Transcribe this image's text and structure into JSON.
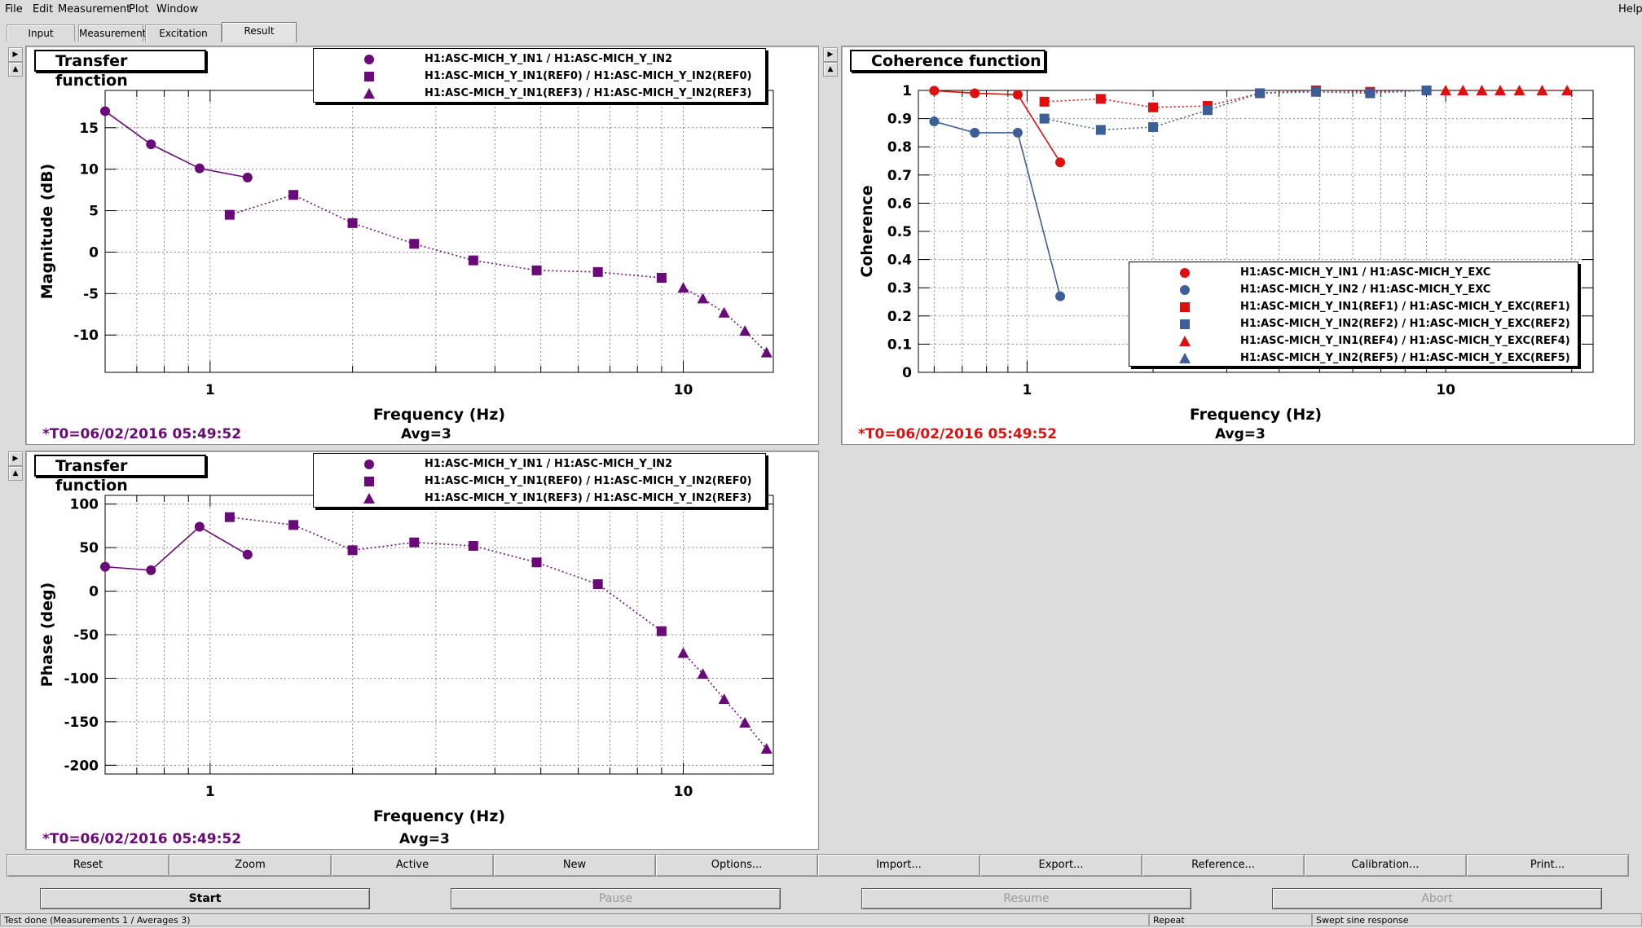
{
  "menu": [
    "File",
    "Edit",
    "Measurement",
    "Plot",
    "Window"
  ],
  "help": "Help",
  "tabs": [
    "Input",
    "Measurement",
    "Excitation",
    "Result"
  ],
  "active_tab": "Result",
  "panels": {
    "tf_mag": {
      "title": "Transfer function",
      "legend": [
        "H1:ASC-MICH_Y_IN1 / H1:ASC-MICH_Y_IN2",
        "H1:ASC-MICH_Y_IN1(REF0) / H1:ASC-MICH_Y_IN2(REF0)",
        "H1:ASC-MICH_Y_IN1(REF3) / H1:ASC-MICH_Y_IN2(REF3)"
      ],
      "timestamp": "*T0=06/02/2016 05:49:52",
      "avg": "Avg=3"
    },
    "coh": {
      "title": "Coherence function",
      "legend": [
        "H1:ASC-MICH_Y_IN1 / H1:ASC-MICH_Y_EXC",
        "H1:ASC-MICH_Y_IN2 / H1:ASC-MICH_Y_EXC",
        "H1:ASC-MICH_Y_IN1(REF1) / H1:ASC-MICH_Y_EXC(REF1)",
        "H1:ASC-MICH_Y_IN2(REF2) / H1:ASC-MICH_Y_EXC(REF2)",
        "H1:ASC-MICH_Y_IN1(REF4) / H1:ASC-MICH_Y_EXC(REF4)",
        "H1:ASC-MICH_Y_IN2(REF5) / H1:ASC-MICH_Y_EXC(REF5)"
      ],
      "timestamp": "*T0=06/02/2016 05:49:52",
      "avg": "Avg=3"
    },
    "tf_phase": {
      "title": "Transfer function",
      "legend": [
        "H1:ASC-MICH_Y_IN1 / H1:ASC-MICH_Y_IN2",
        "H1:ASC-MICH_Y_IN1(REF0) / H1:ASC-MICH_Y_IN2(REF0)",
        "H1:ASC-MICH_Y_IN1(REF3) / H1:ASC-MICH_Y_IN2(REF3)"
      ],
      "timestamp": "*T0=06/02/2016 05:49:52",
      "avg": "Avg=3"
    }
  },
  "colors": {
    "purple": "#6a0a78",
    "red": "#dd0f0f",
    "blue": "#3d5f97"
  },
  "chart_data": [
    {
      "type": "line",
      "xscale": "log",
      "xlim": [
        0.6,
        15.5
      ],
      "ylim": [
        -14.5,
        19.5
      ],
      "xlabel": "Frequency (Hz)",
      "ylabel": "Magnitude (dB)",
      "xticks": [
        1,
        10
      ],
      "yticks": [
        -10,
        -5,
        0,
        5,
        10,
        15
      ],
      "grid": true,
      "series": [
        {
          "name": "H1:ASC-MICH_Y_IN1 / H1:ASC-MICH_Y_IN2",
          "marker": "circle",
          "dash": "solid",
          "color": "#6a0a78",
          "x": [
            0.6,
            0.75,
            0.95,
            1.2
          ],
          "y": [
            17,
            13,
            10.1,
            9
          ]
        },
        {
          "name": "H1:ASC-MICH_Y_IN1(REF0) / H1:ASC-MICH_Y_IN2(REF0)",
          "marker": "square",
          "dash": "dotted",
          "color": "#6a0a78",
          "x": [
            1.1,
            1.5,
            2.0,
            2.7,
            3.6,
            4.9,
            6.6,
            9.0
          ],
          "y": [
            4.5,
            6.9,
            3.5,
            1.0,
            -1.0,
            -2.2,
            -2.4,
            -3.1
          ]
        },
        {
          "name": "H1:ASC-MICH_Y_IN1(REF3) / H1:ASC-MICH_Y_IN2(REF3)",
          "marker": "triangle",
          "dash": "dotted",
          "color": "#6a0a78",
          "x": [
            10.0,
            11.0,
            12.2,
            13.5,
            15.0
          ],
          "y": [
            -4.3,
            -5.6,
            -7.3,
            -9.5,
            -12.1
          ]
        }
      ]
    },
    {
      "type": "line",
      "xscale": "log",
      "xlim": [
        0.55,
        22.5
      ],
      "ylim": [
        0,
        1.0
      ],
      "xlabel": "Frequency (Hz)",
      "ylabel": "Coherence",
      "xticks": [
        1,
        10
      ],
      "yticks": [
        0,
        0.1,
        0.2,
        0.3,
        0.4,
        0.5,
        0.6,
        0.7,
        0.8,
        0.9,
        1
      ],
      "grid": true,
      "series": [
        {
          "name": "H1:ASC-MICH_Y_IN1 / H1:ASC-MICH_Y_EXC",
          "marker": "circle",
          "dash": "solid",
          "color": "#dd0f0f",
          "x": [
            0.6,
            0.75,
            0.95,
            1.2
          ],
          "y": [
            0.999,
            0.99,
            0.985,
            0.745
          ]
        },
        {
          "name": "H1:ASC-MICH_Y_IN2 / H1:ASC-MICH_Y_EXC",
          "marker": "circle",
          "dash": "solid",
          "color": "#3d5f97",
          "x": [
            0.6,
            0.75,
            0.95,
            1.2
          ],
          "y": [
            0.89,
            0.85,
            0.85,
            0.27
          ]
        },
        {
          "name": "H1:ASC-MICH_Y_IN1(REF1) / H1:ASC-MICH_Y_EXC(REF1)",
          "marker": "square",
          "dash": "dotted",
          "color": "#dd0f0f",
          "x": [
            1.1,
            1.5,
            2.0,
            2.7,
            3.6,
            4.9,
            6.6,
            9.0
          ],
          "y": [
            0.96,
            0.97,
            0.94,
            0.945,
            0.99,
            1.0,
            0.995,
            1.0
          ]
        },
        {
          "name": "H1:ASC-MICH_Y_IN2(REF2) / H1:ASC-MICH_Y_EXC(REF2)",
          "marker": "square",
          "dash": "dotted",
          "color": "#3d5f97",
          "x": [
            1.1,
            1.5,
            2.0,
            2.7,
            3.6,
            4.9,
            6.6,
            9.0
          ],
          "y": [
            0.9,
            0.86,
            0.87,
            0.93,
            0.99,
            0.995,
            0.99,
            1.0
          ]
        },
        {
          "name": "H1:ASC-MICH_Y_IN1(REF4) / H1:ASC-MICH_Y_EXC(REF4)",
          "marker": "triangle",
          "dash": "dotted",
          "color": "#dd0f0f",
          "x": [
            10.0,
            11.0,
            12.2,
            13.5,
            15.0,
            17.0,
            19.5
          ],
          "y": [
            1.0,
            1.0,
            1.0,
            1.0,
            1.0,
            1.0,
            1.0
          ]
        },
        {
          "name": "H1:ASC-MICH_Y_IN2(REF5) / H1:ASC-MICH_Y_EXC(REF5)",
          "marker": "triangle",
          "dash": "dotted",
          "color": "#3d5f97",
          "x": [],
          "y": []
        }
      ]
    },
    {
      "type": "line",
      "xscale": "log",
      "xlim": [
        0.6,
        15.5
      ],
      "ylim": [
        -210,
        110
      ],
      "xlabel": "Frequency (Hz)",
      "ylabel": "Phase (deg)",
      "xticks": [
        1,
        10
      ],
      "yticks": [
        -200,
        -150,
        -100,
        -50,
        0,
        50,
        100
      ],
      "grid": true,
      "series": [
        {
          "name": "H1:ASC-MICH_Y_IN1 / H1:ASC-MICH_Y_IN2",
          "marker": "circle",
          "dash": "solid",
          "color": "#6a0a78",
          "x": [
            0.6,
            0.75,
            0.95,
            1.2
          ],
          "y": [
            28,
            24,
            74,
            42
          ]
        },
        {
          "name": "H1:ASC-MICH_Y_IN1(REF0) / H1:ASC-MICH_Y_IN2(REF0)",
          "marker": "square",
          "dash": "dotted",
          "color": "#6a0a78",
          "x": [
            1.1,
            1.5,
            2.0,
            2.7,
            3.6,
            4.9,
            6.6,
            9.0
          ],
          "y": [
            85,
            76,
            47,
            56,
            52,
            33,
            8,
            -46
          ]
        },
        {
          "name": "H1:ASC-MICH_Y_IN1(REF3) / H1:ASC-MICH_Y_IN2(REF3)",
          "marker": "triangle",
          "dash": "dotted",
          "color": "#6a0a78",
          "x": [
            10.0,
            11.0,
            12.2,
            13.5,
            15.0
          ],
          "y": [
            -71,
            -95,
            -124,
            -151,
            -181
          ]
        }
      ]
    }
  ],
  "toolbar": [
    "Reset",
    "Zoom",
    "Active",
    "New",
    "Options...",
    "Import...",
    "Export...",
    "Reference...",
    "Calibration...",
    "Print..."
  ],
  "controls": {
    "start": "Start",
    "pause": "Pause",
    "resume": "Resume",
    "abort": "Abort"
  },
  "status": {
    "message": "Test done (Measurements 1 / Averages 3)",
    "mode": "Repeat",
    "type": "Swept sine response"
  }
}
